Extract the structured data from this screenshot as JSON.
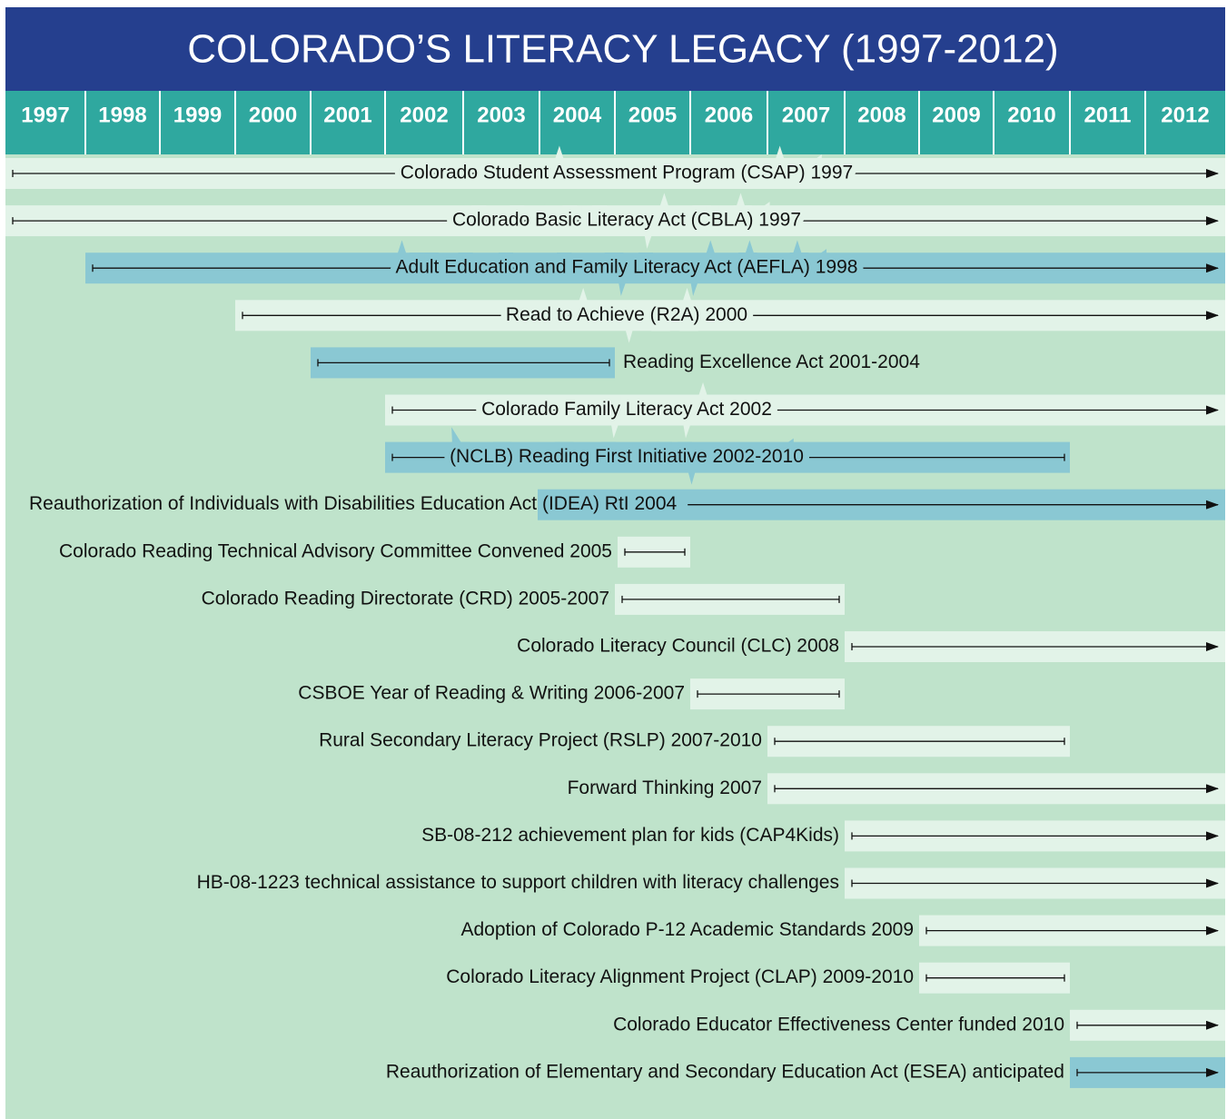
{
  "title": "COLORADO’S LITERACY LEGACY (1997-2012)",
  "years": [
    "1997",
    "1998",
    "1999",
    "2000",
    "2001",
    "2002",
    "2003",
    "2004",
    "2005",
    "2006",
    "2007",
    "2008",
    "2009",
    "2010",
    "2011",
    "2012"
  ],
  "items": [
    {
      "label": "Colorado Student Assessment Program (CSAP) 1997"
    },
    {
      "label": "Colorado Basic Literacy Act (CBLA) 1997"
    },
    {
      "label": "Adult Education and Family Literacy Act (AEFLA) 1998"
    },
    {
      "label": "Read to Achieve (R2A) 2000"
    },
    {
      "label": "Reading Excellence Act 2001-2004"
    },
    {
      "label": "Colorado Family Literacy Act 2002"
    },
    {
      "label": "(NCLB) Reading First Initiative 2002-2010"
    },
    {
      "label": "Reauthorization of Individuals with Disabilities Education Act (IDEA) RtI 2004"
    },
    {
      "label": "Colorado Reading Technical Advisory Committee Convened 2005"
    },
    {
      "label": "Colorado Reading Directorate (CRD) 2005-2007"
    },
    {
      "label": "Colorado Literacy Council (CLC) 2008"
    },
    {
      "label": "CSBOE Year of Reading & Writing 2006-2007"
    },
    {
      "label": "Rural Secondary Literacy Project (RSLP) 2007-2010"
    },
    {
      "label": "Forward Thinking 2007"
    },
    {
      "label": "SB-08-212 achievement plan for kids (CAP4Kids)"
    },
    {
      "label": "HB-08-1223 technical assistance to support children with literacy challenges"
    },
    {
      "label": "Adoption of Colorado P-12 Academic Standards 2009"
    },
    {
      "label": "Colorado Literacy Alignment Project (CLAP) 2009-2010"
    },
    {
      "label": "Colorado Educator Effectiveness Center funded 2010"
    },
    {
      "label": "Reauthorization of Elementary and Secondary Education Act (ESEA) anticipated"
    }
  ]
}
